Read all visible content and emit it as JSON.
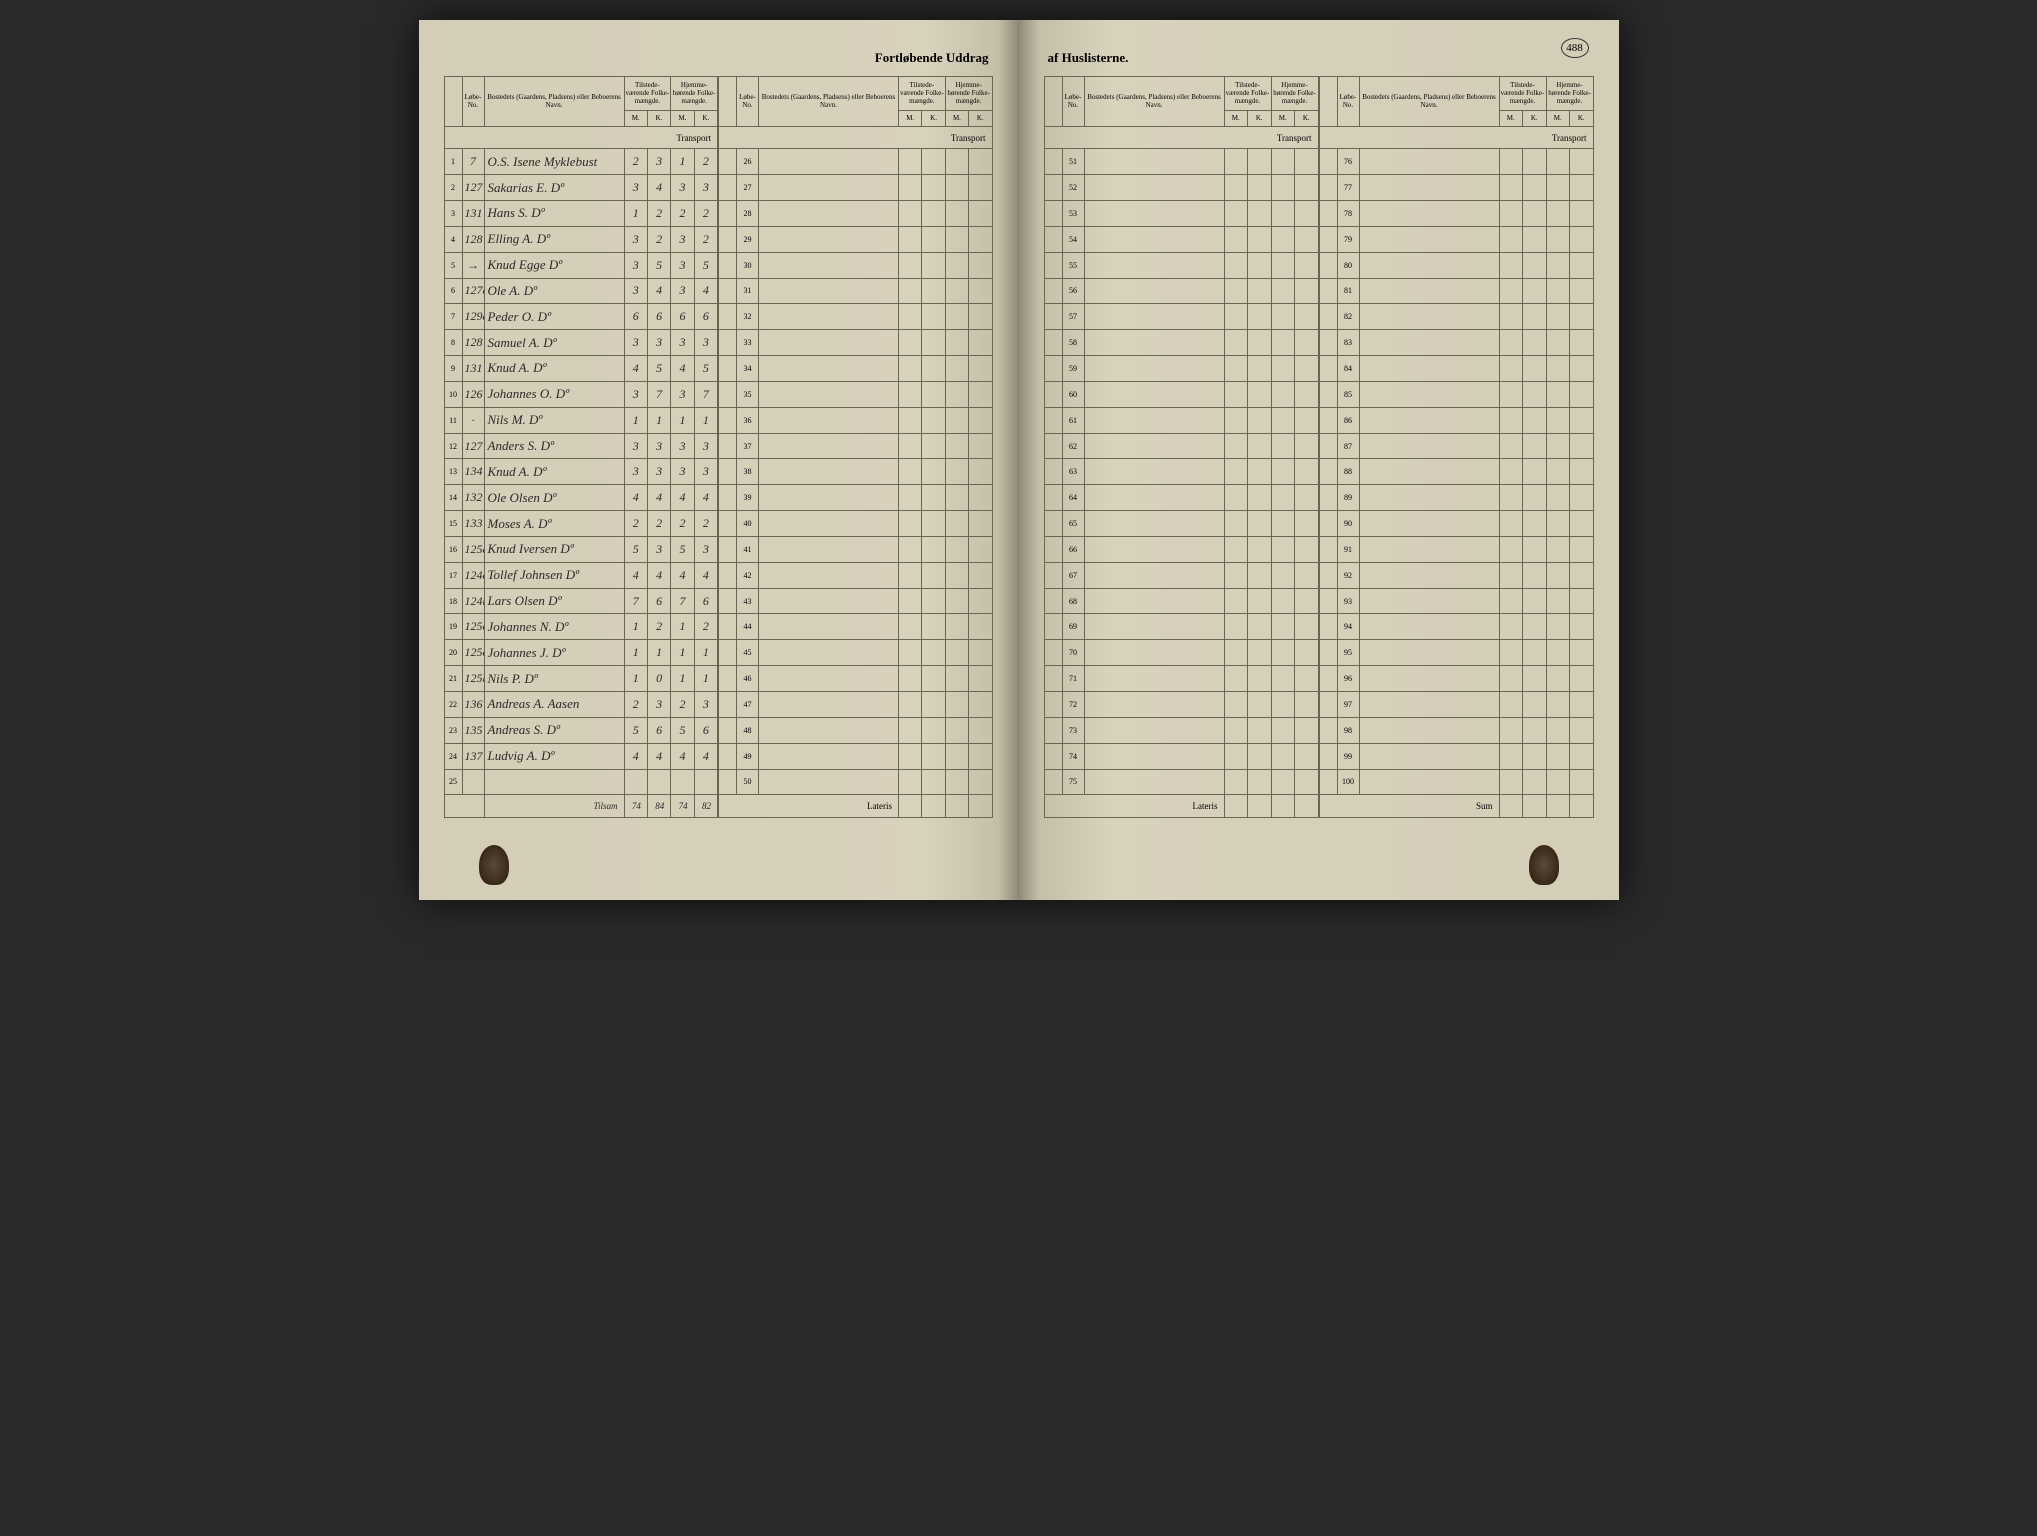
{
  "title_left": "Fortløbende Uddrag",
  "title_right": "af Huslisterne.",
  "page_number": "488",
  "headers": {
    "huslisternes": "Huslisternes No.",
    "lobe": "Løbe-\nNo.",
    "bosted": "Bostedets (Gaardens, Pladsens)\neller Beboerens Navn.",
    "tilstede": "Tilstede-\nværende\nFolke-\nmængde.",
    "hjemme": "Hjemme-\nhørende\nFolke-\nmængde.",
    "m": "M.",
    "k": "K."
  },
  "transport": "Transport",
  "lateris": "Lateris",
  "sum": "Sum",
  "tilsam": "Tilsam",
  "totals": {
    "tm": "74",
    "tk": "84",
    "hm": "74",
    "hk": "82"
  },
  "rows_left_a": [
    {
      "n": "1",
      "h": "7",
      "name": "O.S. Isene Myklebust",
      "tm": "2",
      "tk": "3",
      "hm": "1",
      "hk": "2"
    },
    {
      "n": "2",
      "h": "127",
      "name": "Sakarias E.  Dº",
      "tm": "3",
      "tk": "4",
      "hm": "3",
      "hk": "3"
    },
    {
      "n": "3",
      "h": "131",
      "name": "Hans S.  Dº",
      "tm": "1",
      "tk": "2",
      "hm": "2",
      "hk": "2"
    },
    {
      "n": "4",
      "h": "128",
      "name": "Elling A.  Dº",
      "tm": "3",
      "tk": "2",
      "hm": "3",
      "hk": "2"
    },
    {
      "n": "5",
      "h": "→",
      "name": "Knud Egge  Dº",
      "tm": "3",
      "tk": "5",
      "hm": "3",
      "hk": "5"
    },
    {
      "n": "6",
      "h": "127a",
      "name": "Ole A.  Dº",
      "tm": "3",
      "tk": "4",
      "hm": "3",
      "hk": "4"
    },
    {
      "n": "7",
      "h": "129a",
      "name": "Peder O.  Dº",
      "tm": "6",
      "tk": "6",
      "hm": "6",
      "hk": "6"
    },
    {
      "n": "8",
      "h": "128",
      "name": "Samuel A.  Dº",
      "tm": "3",
      "tk": "3",
      "hm": "3",
      "hk": "3"
    },
    {
      "n": "9",
      "h": "131",
      "name": "Knud A.  Dº",
      "tm": "4",
      "tk": "5",
      "hm": "4",
      "hk": "5"
    },
    {
      "n": "10",
      "h": "126",
      "name": "Johannes O.  Dº",
      "tm": "3",
      "tk": "7",
      "hm": "3",
      "hk": "7"
    },
    {
      "n": "11",
      "h": "·",
      "name": "Nils M.  Dº",
      "tm": "1",
      "tk": "1",
      "hm": "1",
      "hk": "1"
    },
    {
      "n": "12",
      "h": "127",
      "name": "Anders S.  Dº",
      "tm": "3",
      "tk": "3",
      "hm": "3",
      "hk": "3"
    },
    {
      "n": "13",
      "h": "134",
      "name": "Knud A.  Dº",
      "tm": "3",
      "tk": "3",
      "hm": "3",
      "hk": "3"
    },
    {
      "n": "14",
      "h": "132",
      "name": "Ole Olsen  Dº",
      "tm": "4",
      "tk": "4",
      "hm": "4",
      "hk": "4"
    },
    {
      "n": "15",
      "h": "133",
      "name": "Moses A.  Dº",
      "tm": "2",
      "tk": "2",
      "hm": "2",
      "hk": "2"
    },
    {
      "n": "16",
      "h": "125a",
      "name": "Knud Iversen  Dº",
      "tm": "5",
      "tk": "3",
      "hm": "5",
      "hk": "3"
    },
    {
      "n": "17",
      "h": "124c",
      "name": "Tollef Johnsen  Dº",
      "tm": "4",
      "tk": "4",
      "hm": "4",
      "hk": "4"
    },
    {
      "n": "18",
      "h": "124b",
      "name": "Lars Olsen  Dº",
      "tm": "7",
      "tk": "6",
      "hm": "7",
      "hk": "6"
    },
    {
      "n": "19",
      "h": "125c",
      "name": "Johannes N.  Dº",
      "tm": "1",
      "tk": "2",
      "hm": "1",
      "hk": "2"
    },
    {
      "n": "20",
      "h": "125c",
      "name": "Johannes J.  Dº",
      "tm": "1",
      "tk": "1",
      "hm": "1",
      "hk": "1"
    },
    {
      "n": "21",
      "h": "125b",
      "name": "Nils P.  Dº",
      "tm": "1",
      "tk": "0",
      "hm": "1",
      "hk": "1"
    },
    {
      "n": "22",
      "h": "136",
      "name": "Andreas A. Aasen",
      "tm": "2",
      "tk": "3",
      "hm": "2",
      "hk": "3"
    },
    {
      "n": "23",
      "h": "135",
      "name": "Andreas S.  Dº",
      "tm": "5",
      "tk": "6",
      "hm": "5",
      "hk": "6"
    },
    {
      "n": "24",
      "h": "137",
      "name": "Ludvig A.  Dº",
      "tm": "4",
      "tk": "4",
      "hm": "4",
      "hk": "4"
    },
    {
      "n": "25",
      "h": "",
      "name": "",
      "tm": "",
      "tk": "",
      "hm": "",
      "hk": ""
    }
  ],
  "nums_left_b": [
    "26",
    "27",
    "28",
    "29",
    "30",
    "31",
    "32",
    "33",
    "34",
    "35",
    "36",
    "37",
    "38",
    "39",
    "40",
    "41",
    "42",
    "43",
    "44",
    "45",
    "46",
    "47",
    "48",
    "49",
    "50"
  ],
  "nums_right_a": [
    "51",
    "52",
    "53",
    "54",
    "55",
    "56",
    "57",
    "58",
    "59",
    "60",
    "61",
    "62",
    "63",
    "64",
    "65",
    "66",
    "67",
    "68",
    "69",
    "70",
    "71",
    "72",
    "73",
    "74",
    "75"
  ],
  "nums_right_b": [
    "76",
    "77",
    "78",
    "79",
    "80",
    "81",
    "82",
    "83",
    "84",
    "85",
    "86",
    "87",
    "88",
    "89",
    "90",
    "91",
    "92",
    "93",
    "94",
    "95",
    "96",
    "97",
    "98",
    "99",
    "100"
  ]
}
